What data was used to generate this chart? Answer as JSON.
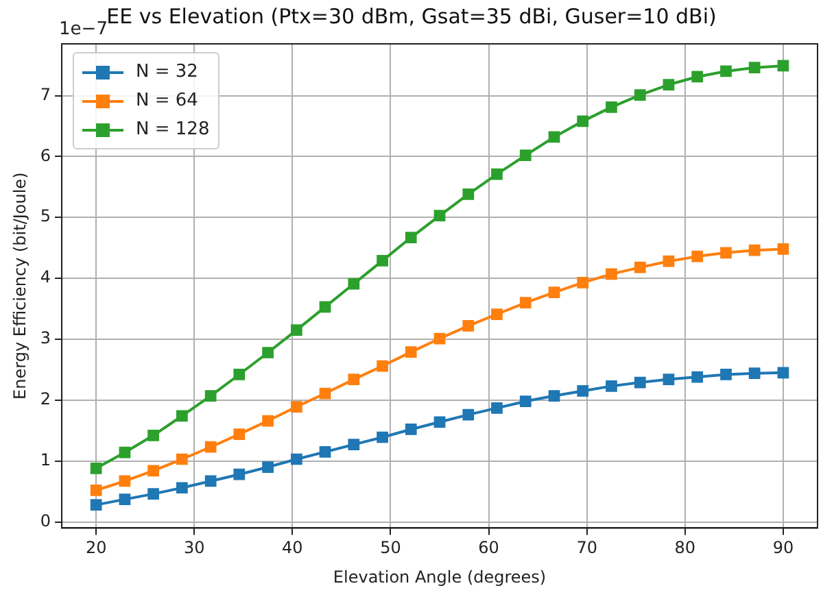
{
  "chart_data": {
    "type": "line",
    "title": "EE vs Elevation (Ptx=30 dBm, Gsat=35 dBi, Guser=10 dBi)",
    "xlabel": "Elevation Angle (degrees)",
    "ylabel": "Energy Efficiency (bit/Joule)",
    "annotations": [
      "1e−7"
    ],
    "x": [
      20,
      22.92,
      25.83,
      28.75,
      31.67,
      34.58,
      37.5,
      40.42,
      43.33,
      46.25,
      49.17,
      52.08,
      55,
      57.92,
      60.83,
      63.75,
      66.67,
      69.58,
      72.5,
      75.42,
      78.33,
      81.25,
      84.17,
      87.08,
      90
    ],
    "series": [
      {
        "name": "N = 32",
        "color": "#1f77b4",
        "values": [
          0.28,
          0.37,
          0.46,
          0.56,
          0.67,
          0.78,
          0.9,
          1.03,
          1.15,
          1.27,
          1.39,
          1.52,
          1.64,
          1.76,
          1.87,
          1.98,
          2.07,
          2.15,
          2.23,
          2.29,
          2.34,
          2.38,
          2.42,
          2.44,
          2.45
        ]
      },
      {
        "name": "N = 64",
        "color": "#ff7f0e",
        "values": [
          0.52,
          0.67,
          0.84,
          1.03,
          1.23,
          1.44,
          1.66,
          1.89,
          2.11,
          2.34,
          2.56,
          2.79,
          3.01,
          3.22,
          3.41,
          3.6,
          3.77,
          3.93,
          4.07,
          4.18,
          4.28,
          4.36,
          4.42,
          4.46,
          4.48
        ]
      },
      {
        "name": "N = 128",
        "color": "#2ca02c",
        "values": [
          0.88,
          1.14,
          1.42,
          1.74,
          2.07,
          2.42,
          2.78,
          3.15,
          3.53,
          3.91,
          4.29,
          4.67,
          5.03,
          5.38,
          5.71,
          6.02,
          6.32,
          6.58,
          6.81,
          7.01,
          7.18,
          7.31,
          7.4,
          7.46,
          7.49
        ]
      }
    ],
    "xlim": [
      16.5,
      93.5
    ],
    "xticks": [
      20,
      30,
      40,
      50,
      60,
      70,
      80,
      90
    ],
    "ylim": [
      -0.1,
      7.85
    ],
    "yticks": [
      0,
      1,
      2,
      3,
      4,
      5,
      6,
      7
    ],
    "grid": true,
    "legend": "top left",
    "marker": "square",
    "line_style": "solid"
  }
}
